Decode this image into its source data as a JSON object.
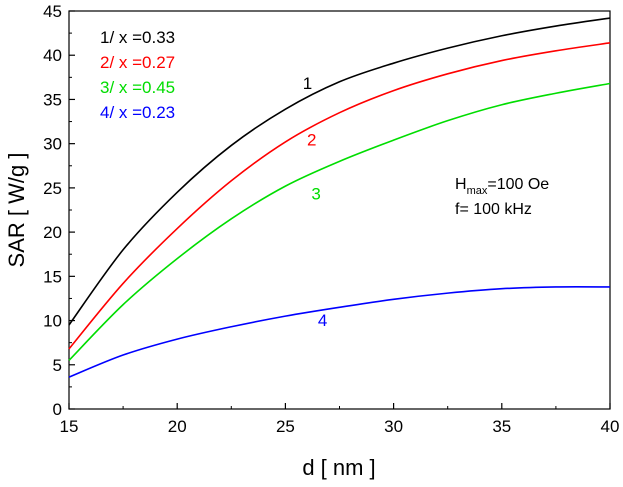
{
  "chart_data": {
    "type": "line",
    "xlabel": "d [ nm ]",
    "ylabel": "SAR [ W/g ]",
    "xlim": [
      15,
      40
    ],
    "ylim": [
      0,
      45
    ],
    "xticks": [
      "15",
      "20",
      "25",
      "30",
      "35",
      "40"
    ],
    "yticks": [
      "0",
      "5",
      "10",
      "15",
      "20",
      "25",
      "30",
      "35",
      "40",
      "45"
    ],
    "grid": false,
    "legend_position": "top-left",
    "series": [
      {
        "name": "1/ x =0.33",
        "curve_label": "1",
        "color": "#000000",
        "x": [
          15,
          17.5,
          20,
          22.5,
          25,
          27.5,
          30,
          32.5,
          35,
          37.5,
          40
        ],
        "y": [
          9.5,
          18.0,
          24.5,
          29.8,
          33.9,
          37.0,
          39.1,
          40.8,
          42.2,
          43.3,
          44.2
        ]
      },
      {
        "name": "2/ x =0.27",
        "curve_label": "2",
        "color": "#ff0000",
        "x": [
          15,
          17.5,
          20,
          22.5,
          25,
          27.5,
          30,
          32.5,
          35,
          37.5,
          40
        ],
        "y": [
          6.8,
          14.2,
          20.4,
          25.8,
          30.2,
          33.5,
          36.0,
          37.9,
          39.4,
          40.5,
          41.4
        ]
      },
      {
        "name": "3/ x =0.45",
        "curve_label": "3",
        "color": "#00dd00",
        "x": [
          15,
          17.5,
          20,
          22.5,
          25,
          27.5,
          30,
          32.5,
          35,
          37.5,
          40
        ],
        "y": [
          5.5,
          11.8,
          17.0,
          21.5,
          25.2,
          28.0,
          30.4,
          32.6,
          34.4,
          35.7,
          36.8
        ]
      },
      {
        "name": "4/ x =0.23",
        "curve_label": "4",
        "color": "#0000ff",
        "x": [
          15,
          17.5,
          20,
          22.5,
          25,
          27.5,
          30,
          32.5,
          35,
          37.5,
          40
        ],
        "y": [
          3.6,
          6.1,
          7.9,
          9.3,
          10.5,
          11.5,
          12.4,
          13.1,
          13.6,
          13.8,
          13.8
        ]
      }
    ],
    "curve_label_positions": [
      {
        "x": 25.8,
        "y": 36.2
      },
      {
        "x": 26.0,
        "y": 29.8
      },
      {
        "x": 26.2,
        "y": 23.7
      },
      {
        "x": 26.5,
        "y": 9.4
      }
    ],
    "conditions": {
      "line1_prefix": "H",
      "line1_sub": "max",
      "line1_suffix": "=100 Oe",
      "line2": "f= 100 kHz"
    }
  }
}
